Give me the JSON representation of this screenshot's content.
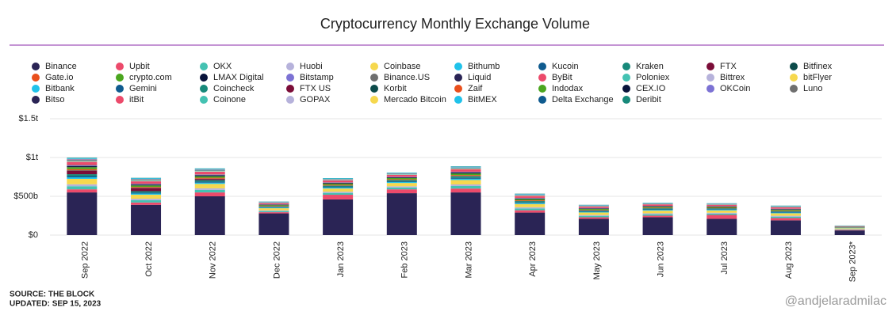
{
  "chart_data": {
    "type": "stacked_bar",
    "title": "Cryptocurrency Monthly Exchange Volume",
    "source": "SOURCE: THE BLOCK",
    "updated": "UPDATED: SEP 15, 2023",
    "watermark": "@andjelaradmilac",
    "categories": [
      "Sep 2022",
      "Oct 2022",
      "Nov 2022",
      "Dec 2022",
      "Jan 2023",
      "Feb 2023",
      "Mar 2023",
      "Apr 2023",
      "May 2023",
      "Jun 2023",
      "Jul 2023",
      "Aug 2023",
      "Sep 2023*"
    ],
    "ylim": [
      0,
      1500
    ],
    "yticks": [
      {
        "value": 0,
        "label": "$0"
      },
      {
        "value": 500,
        "label": "$500b"
      },
      {
        "value": 1000,
        "label": "$1t"
      },
      {
        "value": 1500,
        "label": "$1.5t"
      }
    ],
    "grid": true,
    "series": [
      {
        "name": "Binance",
        "color": "#2a2455",
        "values": [
          550,
          390,
          500,
          280,
          460,
          540,
          550,
          290,
          210,
          230,
          210,
          190,
          60
        ]
      },
      {
        "name": "Upbit",
        "color": "#ec4a6b",
        "values": [
          40,
          30,
          50,
          15,
          60,
          50,
          50,
          30,
          20,
          20,
          50,
          30,
          8
        ]
      },
      {
        "name": "OKX",
        "color": "#44c2b2",
        "values": [
          40,
          30,
          33,
          15,
          24,
          24,
          33,
          24,
          18,
          19,
          17,
          18,
          6
        ]
      },
      {
        "name": "Huobi",
        "color": "#b6b2db",
        "values": [
          25,
          19,
          20,
          9,
          15,
          15,
          20,
          15,
          11,
          12,
          11,
          11,
          4
        ]
      },
      {
        "name": "Coinbase",
        "color": "#f6d84e",
        "values": [
          70,
          52,
          57,
          27,
          41,
          43,
          57,
          41,
          32,
          34,
          30,
          32,
          11
        ]
      },
      {
        "name": "Bithumb",
        "color": "#20c2ea",
        "values": [
          20,
          15,
          16,
          8,
          12,
          12,
          16,
          12,
          9,
          10,
          9,
          9,
          3
        ]
      },
      {
        "name": "Kucoin",
        "color": "#0f5b8f",
        "values": [
          15,
          11,
          12,
          6,
          9,
          9,
          12,
          9,
          7,
          7,
          6,
          7,
          2
        ]
      },
      {
        "name": "Kraken",
        "color": "#17897a",
        "values": [
          25,
          19,
          20,
          9,
          15,
          15,
          20,
          15,
          11,
          12,
          11,
          11,
          4
        ]
      },
      {
        "name": "FTX",
        "color": "#7b0d38",
        "values": [
          45,
          40,
          15,
          0,
          0,
          0,
          0,
          0,
          0,
          0,
          0,
          0,
          0
        ]
      },
      {
        "name": "Bitfinex",
        "color": "#0c4b4a",
        "values": [
          5,
          4,
          4,
          2,
          3,
          3,
          4,
          3,
          2,
          2,
          2,
          2,
          1
        ]
      },
      {
        "name": "Gate.io",
        "color": "#e94f1c",
        "values": [
          15,
          11,
          12,
          6,
          9,
          9,
          12,
          9,
          7,
          7,
          6,
          7,
          2
        ]
      },
      {
        "name": "crypto.com",
        "color": "#4ba61f",
        "values": [
          25,
          19,
          20,
          9,
          15,
          15,
          20,
          15,
          11,
          12,
          11,
          11,
          4
        ]
      },
      {
        "name": "LMAX Digital",
        "color": "#08133a",
        "values": [
          15,
          11,
          12,
          6,
          9,
          9,
          12,
          9,
          7,
          7,
          6,
          7,
          2
        ]
      },
      {
        "name": "Bitstamp",
        "color": "#7c72d4",
        "values": [
          8,
          6,
          7,
          3,
          5,
          5,
          7,
          5,
          4,
          4,
          3,
          4,
          1
        ]
      },
      {
        "name": "Binance.US",
        "color": "#6f6f6f",
        "values": [
          5,
          4,
          4,
          2,
          3,
          3,
          4,
          3,
          1,
          1,
          1,
          1,
          0.3
        ]
      },
      {
        "name": "Liquid",
        "color": "#2a2455",
        "values": [
          2,
          2,
          1,
          0,
          0,
          0,
          0,
          0,
          0,
          0,
          0,
          0,
          0
        ]
      },
      {
        "name": "ByBit",
        "color": "#ec4a6b",
        "values": [
          40,
          30,
          33,
          15,
          24,
          24,
          33,
          24,
          18,
          19,
          17,
          18,
          6
        ]
      },
      {
        "name": "Poloniex",
        "color": "#44c2b2",
        "values": [
          3,
          2,
          2,
          1,
          2,
          2,
          2,
          2,
          1,
          1,
          1,
          1,
          0.5
        ]
      },
      {
        "name": "Bittrex",
        "color": "#b6b2db",
        "values": [
          2,
          2,
          2,
          1,
          1,
          1,
          1,
          1,
          0.5,
          0.5,
          0.5,
          0.5,
          0.1
        ]
      },
      {
        "name": "bitFlyer",
        "color": "#f6d84e",
        "values": [
          5,
          4,
          4,
          2,
          3,
          3,
          4,
          3,
          2,
          2,
          2,
          2,
          1
        ]
      },
      {
        "name": "Bitbank",
        "color": "#20c2ea",
        "values": [
          5,
          4,
          4,
          2,
          3,
          3,
          4,
          3,
          2,
          2,
          2,
          2,
          1
        ]
      },
      {
        "name": "Gemini",
        "color": "#0f5b8f",
        "values": [
          3,
          2,
          2,
          1,
          2,
          2,
          2,
          2,
          1,
          1,
          1,
          1,
          0.5
        ]
      },
      {
        "name": "Coincheck",
        "color": "#17897a",
        "values": [
          2,
          2,
          2,
          1,
          1,
          1,
          1,
          1,
          1,
          1,
          1,
          1,
          0.3
        ]
      },
      {
        "name": "FTX US",
        "color": "#7b0d38",
        "values": [
          3,
          2,
          1,
          0,
          0,
          0,
          0,
          0,
          0,
          0,
          0,
          0,
          0
        ]
      },
      {
        "name": "Korbit",
        "color": "#0c4b4a",
        "values": [
          1,
          1,
          1,
          0.4,
          0.6,
          0.6,
          0.8,
          0.6,
          0.5,
          0.5,
          0.4,
          0.5,
          0.2
        ]
      },
      {
        "name": "Zaif",
        "color": "#e94f1c",
        "values": [
          0.3,
          0.2,
          0.2,
          0.1,
          0.2,
          0.2,
          0.2,
          0.2,
          0.1,
          0.1,
          0.1,
          0.1,
          0.05
        ]
      },
      {
        "name": "Indodax",
        "color": "#4ba61f",
        "values": [
          1,
          1,
          1,
          0.4,
          0.6,
          0.6,
          0.8,
          0.6,
          0.5,
          0.5,
          0.4,
          0.5,
          0.2
        ]
      },
      {
        "name": "CEX.IO",
        "color": "#08133a",
        "values": [
          1,
          1,
          1,
          0.4,
          0.6,
          0.6,
          0.8,
          0.6,
          0.5,
          0.5,
          0.4,
          0.5,
          0.2
        ]
      },
      {
        "name": "OKCoin",
        "color": "#7c72d4",
        "values": [
          3,
          2,
          2,
          1,
          2,
          2,
          2,
          2,
          1,
          1,
          1,
          1,
          0.5
        ]
      },
      {
        "name": "Luno",
        "color": "#6f6f6f",
        "values": [
          1,
          1,
          1,
          0.4,
          0.6,
          0.6,
          0.8,
          0.6,
          0.5,
          0.5,
          0.4,
          0.5,
          0.2
        ]
      },
      {
        "name": "Bitso",
        "color": "#2a2455",
        "values": [
          2,
          2,
          2,
          1,
          1,
          1,
          1,
          1,
          1,
          1,
          1,
          1,
          0.3
        ]
      },
      {
        "name": "itBit",
        "color": "#ec4a6b",
        "values": [
          2,
          2,
          2,
          1,
          1,
          1,
          1,
          1,
          1,
          1,
          1,
          1,
          0.3
        ]
      },
      {
        "name": "Coinone",
        "color": "#44c2b2",
        "values": [
          2,
          2,
          2,
          1,
          1,
          1,
          1,
          1,
          1,
          1,
          1,
          1,
          0.3
        ]
      },
      {
        "name": "GOPAX",
        "color": "#b6b2db",
        "values": [
          1,
          1,
          1,
          0.4,
          0.6,
          0.6,
          0.8,
          0.6,
          0.5,
          0.5,
          0.4,
          0.5,
          0.2
        ]
      },
      {
        "name": "Mercado Bitcoin",
        "color": "#f6d84e",
        "values": [
          0.5,
          0.4,
          0.4,
          0.2,
          0.3,
          0.3,
          0.4,
          0.3,
          0.2,
          0.2,
          0.2,
          0.2,
          0.1
        ]
      },
      {
        "name": "BitMEX",
        "color": "#20c2ea",
        "values": [
          10,
          8,
          8,
          4,
          6,
          6,
          8,
          6,
          5,
          5,
          4,
          5,
          2
        ]
      },
      {
        "name": "Delta Exchange",
        "color": "#0f5b8f",
        "values": [
          1,
          1,
          1,
          0.4,
          0.6,
          0.6,
          0.8,
          0.6,
          0.5,
          0.5,
          0.4,
          0.5,
          0.2
        ]
      },
      {
        "name": "Deribit",
        "color": "#17897a",
        "values": [
          5,
          4,
          4,
          2,
          3,
          3,
          4,
          3,
          2,
          2,
          2,
          2,
          1
        ]
      }
    ]
  }
}
